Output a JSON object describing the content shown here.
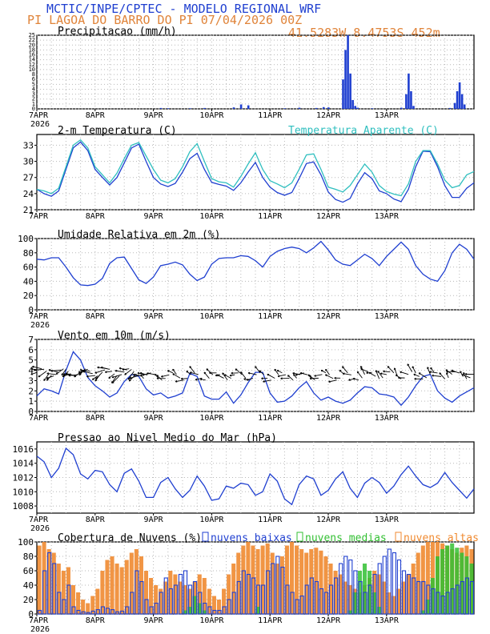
{
  "header": {
    "title": "MCTIC/INPE/CPTEC - MODELO REGIONAL WRF",
    "location": "PI LAGOA DO BARRO DO PI  07/04/2026 00Z",
    "coords": "41.5283W 8.4753S 452m",
    "title_color": "#1f3fd0",
    "location_color": "#e0843a"
  },
  "x_axis": {
    "ticks": [
      "7APR",
      "8APR",
      "9APR",
      "10APR",
      "11APR",
      "12APR",
      "13APR"
    ],
    "year": "2026",
    "hours_total": 180
  },
  "chart_data": [
    {
      "type": "bar",
      "title": "Precipitacao (mm/h)",
      "ylim": [
        0,
        25
      ],
      "yticks": [
        "0",
        "1",
        "2",
        "3",
        "4",
        "5",
        "6",
        "8",
        "10",
        "12",
        "14",
        "16",
        "18",
        "20",
        "22",
        "25"
      ],
      "color": "#1f3fd0",
      "bars": [
        [
          51,
          0.3
        ],
        [
          54,
          0.2
        ],
        [
          63,
          0.2
        ],
        [
          69,
          0.3
        ],
        [
          81,
          0.5
        ],
        [
          84,
          1.5
        ],
        [
          87,
          1.2
        ],
        [
          102,
          0.2
        ],
        [
          108,
          0.4
        ],
        [
          115,
          0.3
        ],
        [
          118,
          0.6
        ],
        [
          120,
          0.5
        ],
        [
          126,
          10
        ],
        [
          127,
          20
        ],
        [
          128,
          25
        ],
        [
          129,
          12
        ],
        [
          130,
          3
        ],
        [
          131,
          1
        ],
        [
          132,
          0.4
        ],
        [
          138,
          0.2
        ],
        [
          150,
          0.4
        ],
        [
          152,
          5
        ],
        [
          153,
          12
        ],
        [
          154,
          6
        ],
        [
          155,
          1
        ],
        [
          170,
          0.3
        ],
        [
          172,
          2
        ],
        [
          173,
          6
        ],
        [
          174,
          9
        ],
        [
          175,
          5
        ],
        [
          176,
          1.5
        ]
      ]
    },
    {
      "type": "line",
      "title": "2-m Temperatura (C)",
      "legend": "Temperatura Aparente (C)",
      "ylim": [
        21,
        35
      ],
      "yticks": [
        21,
        24,
        27,
        30,
        33
      ],
      "series": [
        {
          "name": "Temperatura",
          "color": "#1f3fd0",
          "x": [
            0,
            3,
            6,
            9,
            12,
            15,
            18,
            21,
            24,
            27,
            30,
            33,
            36,
            39,
            42,
            45,
            48,
            51,
            54,
            57,
            60,
            63,
            66,
            69,
            72,
            75,
            78,
            81,
            84,
            87,
            90,
            93,
            96,
            99,
            102,
            105,
            108,
            111,
            114,
            117,
            120,
            123,
            126,
            129,
            132,
            135,
            138,
            141,
            144,
            147,
            150,
            153,
            156,
            159,
            162,
            165,
            168,
            171,
            174,
            177,
            180
          ],
          "values": [
            24.8,
            24.0,
            23.5,
            24.5,
            28.5,
            32.5,
            33.6,
            32.0,
            28.5,
            27.0,
            25.6,
            27.0,
            29.7,
            32.5,
            33.2,
            30.0,
            27.0,
            25.8,
            25.3,
            25.9,
            28.0,
            30.5,
            31.5,
            28.5,
            26.1,
            25.7,
            25.4,
            24.6,
            26.0,
            28.0,
            29.8,
            27.0,
            25.2,
            24.2,
            23.7,
            24.2,
            26.8,
            29.6,
            29.9,
            27.5,
            24.3,
            22.9,
            22.4,
            23.1,
            25.8,
            27.9,
            26.8,
            24.5,
            24.0,
            23.0,
            22.5,
            24.8,
            29.0,
            31.9,
            31.8,
            29.0,
            25.5,
            23.3,
            23.3,
            25.0,
            26.0
          ]
        },
        {
          "name": "Temperatura Aparente",
          "color": "#2fbfbf",
          "x": [
            0,
            3,
            6,
            9,
            12,
            15,
            18,
            21,
            24,
            27,
            30,
            33,
            36,
            39,
            42,
            45,
            48,
            51,
            54,
            57,
            60,
            63,
            66,
            69,
            72,
            75,
            78,
            81,
            84,
            87,
            90,
            93,
            96,
            99,
            102,
            105,
            108,
            111,
            114,
            117,
            120,
            123,
            126,
            129,
            132,
            135,
            138,
            141,
            144,
            147,
            150,
            153,
            156,
            159,
            162,
            165,
            168,
            171,
            174,
            177,
            180
          ],
          "values": [
            24.8,
            24.5,
            24.0,
            25.0,
            29.0,
            33.0,
            34.0,
            32.5,
            29.0,
            27.5,
            26.0,
            27.8,
            30.5,
            33.0,
            33.5,
            31.0,
            28.5,
            26.5,
            26.0,
            26.8,
            29.0,
            31.8,
            33.3,
            30.0,
            26.8,
            26.2,
            26.0,
            25.2,
            27.2,
            29.5,
            31.6,
            28.5,
            26.4,
            25.8,
            25.1,
            26.0,
            28.5,
            31.2,
            31.4,
            28.5,
            25.2,
            24.8,
            24.3,
            25.5,
            27.5,
            29.5,
            28.0,
            25.5,
            24.4,
            23.9,
            23.6,
            25.8,
            30.0,
            32.0,
            32.0,
            29.5,
            26.5,
            25.1,
            25.5,
            27.5,
            28.1
          ]
        }
      ]
    },
    {
      "type": "line",
      "title": "Umidade Relativa em 2m (%)",
      "ylim": [
        0,
        100
      ],
      "yticks": [
        0,
        20,
        40,
        60,
        80,
        100
      ],
      "series": [
        {
          "name": "Umidade",
          "color": "#1f3fd0",
          "x": [
            0,
            3,
            6,
            9,
            12,
            15,
            18,
            21,
            24,
            27,
            30,
            33,
            36,
            39,
            42,
            45,
            48,
            51,
            54,
            57,
            60,
            63,
            66,
            69,
            72,
            75,
            78,
            81,
            84,
            87,
            90,
            93,
            96,
            99,
            102,
            105,
            108,
            111,
            114,
            117,
            120,
            123,
            126,
            129,
            132,
            135,
            138,
            141,
            144,
            147,
            150,
            153,
            156,
            159,
            162,
            165,
            168,
            171,
            174,
            177,
            180
          ],
          "values": [
            71,
            70,
            73,
            73,
            60,
            45,
            35,
            34,
            36,
            44,
            65,
            73,
            74,
            58,
            42,
            37,
            46,
            62,
            64,
            67,
            63,
            50,
            41,
            46,
            64,
            72,
            73,
            73,
            76,
            75,
            69,
            60,
            75,
            82,
            86,
            88,
            86,
            80,
            87,
            96,
            84,
            70,
            64,
            62,
            70,
            78,
            72,
            62,
            75,
            85,
            95,
            85,
            62,
            50,
            43,
            40,
            55,
            80,
            92,
            85,
            71
          ]
        }
      ]
    },
    {
      "type": "line",
      "title": "Vento em 10m (m/s)",
      "ylim": [
        0,
        7
      ],
      "yticks": [
        0,
        1,
        2,
        3,
        4,
        5,
        6,
        7
      ],
      "series": [
        {
          "name": "Vento",
          "color": "#1f3fd0",
          "x": [
            0,
            3,
            6,
            9,
            12,
            15,
            18,
            21,
            24,
            27,
            30,
            33,
            36,
            39,
            42,
            45,
            48,
            51,
            54,
            57,
            60,
            63,
            66,
            69,
            72,
            75,
            78,
            81,
            84,
            87,
            90,
            93,
            96,
            99,
            102,
            105,
            108,
            111,
            114,
            117,
            120,
            123,
            126,
            129,
            132,
            135,
            138,
            141,
            144,
            147,
            150,
            153,
            156,
            159,
            162,
            165,
            168,
            171,
            174,
            177,
            180
          ],
          "values": [
            1.5,
            2.2,
            2.0,
            1.7,
            4.0,
            5.8,
            5.0,
            3.3,
            2.5,
            2.0,
            1.4,
            1.8,
            2.9,
            3.6,
            3.4,
            2.2,
            1.6,
            1.8,
            1.3,
            1.5,
            1.8,
            3.7,
            3.4,
            1.5,
            1.2,
            1.2,
            1.9,
            0.8,
            1.6,
            2.8,
            3.8,
            3.8,
            1.8,
            0.9,
            1.0,
            1.5,
            2.3,
            2.9,
            1.8,
            1.1,
            1.4,
            1.0,
            0.8,
            1.1,
            1.8,
            2.4,
            2.3,
            1.7,
            1.6,
            1.4,
            0.6,
            1.4,
            2.5,
            3.4,
            3.6,
            2.0,
            1.3,
            0.9,
            1.5,
            1.9,
            2.3
          ]
        }
      ],
      "vector_rows": [
        {
          "x0": 0,
          "x1": 44,
          "step": 1.0,
          "y": 3.8,
          "len": 0.6,
          "deg": 160
        },
        {
          "x0": 44,
          "x1": 135,
          "step": 1.5,
          "y": 3.4,
          "len": 0.45,
          "deg": 200
        },
        {
          "x0": 135,
          "x1": 180,
          "step": 1.5,
          "y": 3.5,
          "len": 0.5,
          "deg": 215
        }
      ]
    },
    {
      "type": "line",
      "title": "Pressao ao Nivel Medio do Mar (hPa)",
      "ylim": [
        1007,
        1017
      ],
      "yticks": [
        1008,
        1010,
        1012,
        1014,
        1016
      ],
      "series": [
        {
          "name": "Pressao",
          "color": "#1f3fd0",
          "x": [
            0,
            3,
            6,
            9,
            12,
            15,
            18,
            21,
            24,
            27,
            30,
            33,
            36,
            39,
            42,
            45,
            48,
            51,
            54,
            57,
            60,
            63,
            66,
            69,
            72,
            75,
            78,
            81,
            84,
            87,
            90,
            93,
            96,
            99,
            102,
            105,
            108,
            111,
            114,
            117,
            120,
            123,
            126,
            129,
            132,
            135,
            138,
            141,
            144,
            147,
            150,
            153,
            156,
            159,
            162,
            165,
            168,
            171,
            174,
            177,
            180
          ],
          "values": [
            1015,
            1014.2,
            1012,
            1013.3,
            1016.1,
            1015.2,
            1012.5,
            1011.8,
            1013,
            1012.8,
            1011,
            1010,
            1012.6,
            1013.2,
            1011.5,
            1009.2,
            1009.2,
            1011.3,
            1012,
            1010.4,
            1009.2,
            1010.2,
            1012.2,
            1010.8,
            1008.8,
            1009,
            1010.8,
            1010.5,
            1011.2,
            1011,
            1009.5,
            1010,
            1012.5,
            1011.5,
            1009,
            1008.2,
            1011,
            1012.2,
            1011.8,
            1009.5,
            1010.2,
            1011.8,
            1012.8,
            1010.5,
            1009.2,
            1011.2,
            1012,
            1011.3,
            1009.8,
            1010.8,
            1012.4,
            1013.6,
            1012.2,
            1011,
            1010.6,
            1011.2,
            1012.7,
            1011.3,
            1010.2,
            1009.1,
            1010.4
          ]
        }
      ]
    },
    {
      "type": "bar",
      "title": "Cobertura de Nuvens (%)",
      "ylim": [
        0,
        100
      ],
      "yticks": [
        0,
        20,
        40,
        60,
        80,
        100
      ],
      "legend": [
        "nuvens baixas",
        "nuvens medias",
        "nuvens altas"
      ],
      "colors": {
        "baixas": "#1f3fd0",
        "medias": "#33c033",
        "altas": "#f08a30"
      },
      "baixas": [
        5,
        60,
        85,
        70,
        30,
        20,
        40,
        10,
        5,
        3,
        2,
        4,
        6,
        10,
        8,
        6,
        3,
        4,
        10,
        30,
        60,
        45,
        20,
        10,
        15,
        30,
        50,
        35,
        40,
        55,
        60,
        40,
        45,
        30,
        15,
        10,
        5,
        5,
        10,
        20,
        30,
        45,
        60,
        55,
        50,
        40,
        40,
        60,
        70,
        80,
        65,
        40,
        30,
        20,
        25,
        40,
        50,
        45,
        35,
        30,
        40,
        50,
        70,
        80,
        75,
        60,
        45,
        30,
        40,
        55,
        70,
        80,
        90,
        85,
        75,
        60,
        55,
        50,
        45,
        45,
        40,
        35,
        30,
        25,
        30,
        35,
        40,
        45,
        50,
        45
      ],
      "medias": [
        0,
        0,
        0,
        0,
        0,
        0,
        0,
        0,
        0,
        0,
        0,
        0,
        0,
        0,
        0,
        0,
        0,
        0,
        0,
        0,
        0,
        0,
        0,
        0,
        0,
        0,
        0,
        0,
        0,
        0,
        5,
        10,
        25,
        15,
        5,
        0,
        0,
        0,
        0,
        0,
        0,
        0,
        0,
        0,
        0,
        10,
        0,
        0,
        0,
        0,
        0,
        0,
        0,
        0,
        0,
        0,
        0,
        0,
        0,
        0,
        0,
        0,
        0,
        0,
        5,
        30,
        60,
        70,
        60,
        30,
        10,
        0,
        0,
        0,
        0,
        0,
        0,
        0,
        0,
        5,
        20,
        50,
        80,
        90,
        95,
        98,
        92,
        85,
        80,
        70
      ],
      "altas": [
        95,
        100,
        90,
        85,
        70,
        60,
        65,
        40,
        30,
        20,
        15,
        25,
        35,
        60,
        75,
        80,
        70,
        65,
        75,
        85,
        90,
        80,
        60,
        50,
        40,
        35,
        45,
        60,
        55,
        45,
        40,
        35,
        45,
        55,
        50,
        35,
        25,
        20,
        35,
        55,
        70,
        85,
        95,
        100,
        95,
        90,
        95,
        98,
        85,
        70,
        80,
        95,
        100,
        95,
        90,
        85,
        90,
        92,
        88,
        80,
        70,
        60,
        55,
        45,
        40,
        35,
        30,
        40,
        50,
        60,
        55,
        45,
        30,
        25,
        35,
        45,
        55,
        70,
        85,
        95,
        100,
        100,
        100,
        98,
        95,
        90,
        85,
        92,
        95,
        90
      ]
    }
  ]
}
